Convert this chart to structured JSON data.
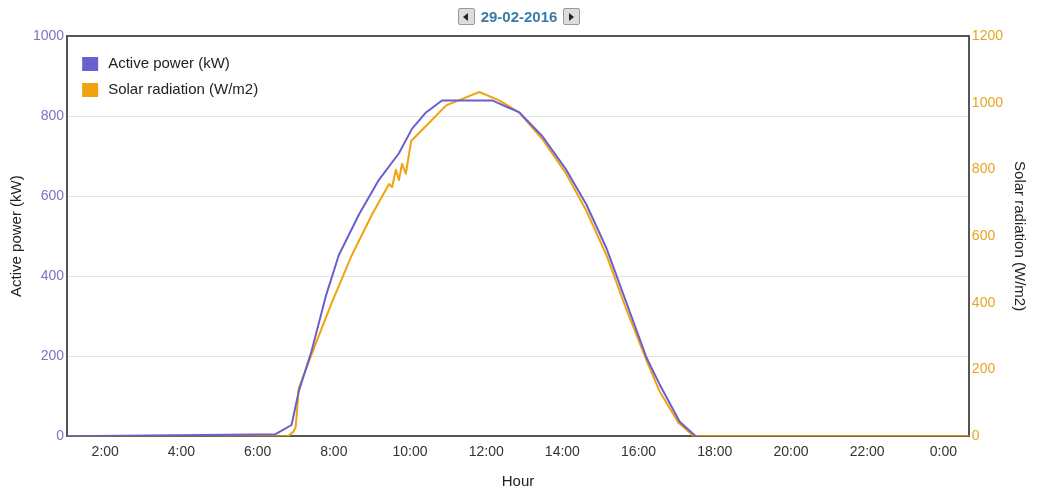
{
  "chart_data": {
    "type": "line",
    "title": "29-02-2016",
    "xlabel": "Hour",
    "ylabel": "Active power (kW)",
    "y2label": "Solar radiation (W/m2)",
    "xlim": [
      1,
      24.67
    ],
    "xticks": [
      {
        "value": 2,
        "label": "2:00"
      },
      {
        "value": 4,
        "label": "4:00"
      },
      {
        "value": 6,
        "label": "6:00"
      },
      {
        "value": 8,
        "label": "8:00"
      },
      {
        "value": 10,
        "label": "10:00"
      },
      {
        "value": 12,
        "label": "12:00"
      },
      {
        "value": 14,
        "label": "14:00"
      },
      {
        "value": 16,
        "label": "16:00"
      },
      {
        "value": 18,
        "label": "18:00"
      },
      {
        "value": 20,
        "label": "20:00"
      },
      {
        "value": 22,
        "label": "22:00"
      },
      {
        "value": 24,
        "label": "0:00"
      }
    ],
    "ylim": [
      0,
      1000
    ],
    "yticks": [
      0,
      200,
      400,
      600,
      800,
      1000
    ],
    "y2lim": [
      0,
      1200
    ],
    "y2ticks": [
      0,
      200,
      400,
      600,
      800,
      1000,
      1200
    ],
    "grid": "y",
    "legend": "top left",
    "marker": "none",
    "line_style": "solid",
    "series": [
      {
        "name": "Active power (kW)",
        "color": "#6a5fcf",
        "x": [
          1,
          6.47,
          6.89,
          7.08,
          7.42,
          7.79,
          8.13,
          8.66,
          9.18,
          9.71,
          10.05,
          10.42,
          10.84,
          12.16,
          12.87,
          13.47,
          14.1,
          14.63,
          15.16,
          15.68,
          16.21,
          16.55,
          17.08,
          17.5
        ],
        "values": [
          0,
          5,
          28,
          112,
          214,
          350,
          452,
          554,
          640,
          707,
          768,
          809,
          839,
          839,
          809,
          750,
          666,
          579,
          469,
          334,
          196,
          130,
          36,
          0
        ]
      },
      {
        "name": "Solar radiation (W/m2)",
        "color": "#f0a30a",
        "axis": "y2",
        "x": [
          1,
          6.8,
          6.95,
          7.0,
          7.08,
          7.53,
          7.95,
          8.47,
          9.0,
          9.45,
          9.53,
          9.63,
          9.71,
          9.79,
          9.89,
          10.03,
          10.42,
          10.95,
          11.47,
          11.82,
          12.34,
          12.87,
          13.47,
          14.1,
          14.63,
          15.16,
          15.68,
          16.21,
          16.55,
          17.05,
          17.45,
          24.67
        ],
        "values": [
          0,
          0,
          15,
          28,
          144,
          279,
          401,
          542,
          664,
          756,
          747,
          799,
          768,
          817,
          787,
          885,
          930,
          992,
          1016,
          1032,
          1007,
          970,
          891,
          787,
          676,
          542,
          380,
          227,
          135,
          40,
          0,
          0
        ]
      }
    ]
  }
}
